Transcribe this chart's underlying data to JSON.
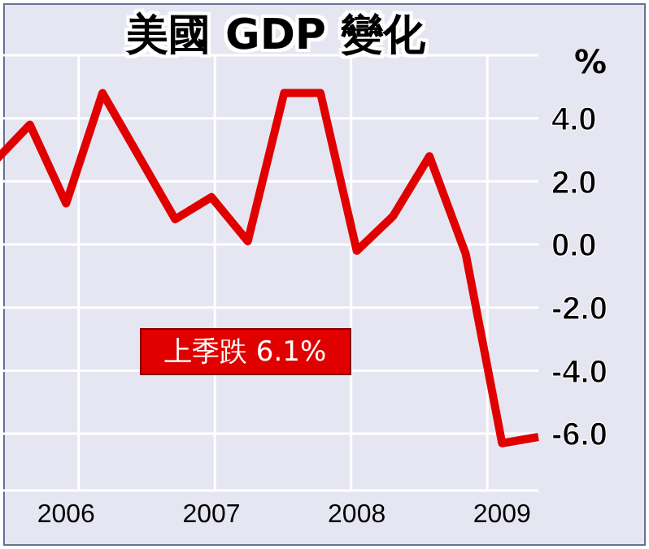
{
  "chart_data": {
    "type": "line",
    "title": "美國 GDP 變化",
    "ylabel": "%",
    "categories": [
      null,
      null,
      "2006",
      null,
      null,
      null,
      "2007",
      null,
      null,
      null,
      "2008",
      null,
      null,
      null,
      "2009",
      null
    ],
    "series": [
      {
        "color": "#e00000",
        "values": [
          2.6,
          3.8,
          1.3,
          4.8,
          2.8,
          0.8,
          1.5,
          0.1,
          4.8,
          4.8,
          -0.2,
          0.9,
          2.8,
          -0.3,
          -6.3,
          -6.1
        ]
      }
    ],
    "ylim": [
      -7.8,
      6
    ],
    "yticks": [
      {
        "value": 4,
        "label": "4.0"
      },
      {
        "value": 2,
        "label": "2.0"
      },
      {
        "value": 0,
        "label": "0.0"
      },
      {
        "value": -2,
        "label": "-2.0"
      },
      {
        "value": -4,
        "label": "-4.0"
      },
      {
        "value": -6,
        "label": "-6.0"
      }
    ],
    "annotations": [
      "上季跌 6.1%"
    ],
    "grid": true,
    "marker": "none",
    "line_style": "solid",
    "legend": false
  }
}
